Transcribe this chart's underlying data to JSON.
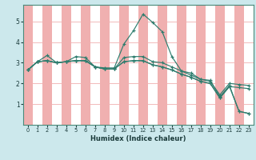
{
  "title": "",
  "xlabel": "Humidex (Indice chaleur)",
  "bg_color": "#cce8ec",
  "line_color": "#2e7d6e",
  "grid_color_pink": "#f0b0b0",
  "grid_color_white": "#ffffff",
  "xlim": [
    -0.5,
    23.5
  ],
  "ylim": [
    0,
    5.8
  ],
  "yticks": [
    1,
    2,
    3,
    4,
    5
  ],
  "xticks": [
    0,
    1,
    2,
    3,
    4,
    5,
    6,
    7,
    8,
    9,
    10,
    11,
    12,
    13,
    14,
    15,
    16,
    17,
    18,
    19,
    20,
    21,
    22,
    23
  ],
  "lines": [
    [
      2.65,
      3.05,
      3.35,
      3.0,
      3.05,
      3.3,
      3.25,
      2.8,
      2.75,
      2.75,
      3.9,
      4.55,
      5.35,
      4.95,
      4.5,
      3.3,
      2.6,
      2.5,
      2.2,
      2.15,
      1.35,
      1.9,
      0.65,
      0.55
    ],
    [
      2.65,
      3.05,
      3.1,
      3.0,
      3.05,
      3.1,
      3.1,
      2.8,
      2.7,
      2.7,
      3.25,
      3.3,
      3.3,
      3.05,
      3.0,
      2.8,
      2.6,
      2.4,
      2.2,
      2.1,
      1.45,
      2.0,
      1.95,
      1.9
    ],
    [
      2.65,
      3.05,
      3.1,
      3.0,
      3.05,
      3.1,
      3.1,
      2.8,
      2.7,
      2.7,
      3.05,
      3.1,
      3.1,
      2.9,
      2.8,
      2.65,
      2.45,
      2.3,
      2.1,
      2.0,
      1.3,
      1.85,
      0.65,
      0.55
    ],
    [
      2.65,
      3.05,
      3.1,
      3.0,
      3.05,
      3.1,
      3.1,
      2.8,
      2.7,
      2.7,
      3.05,
      3.1,
      3.1,
      2.9,
      2.8,
      2.65,
      2.45,
      2.3,
      2.1,
      2.0,
      1.3,
      1.85,
      1.8,
      1.75
    ]
  ]
}
